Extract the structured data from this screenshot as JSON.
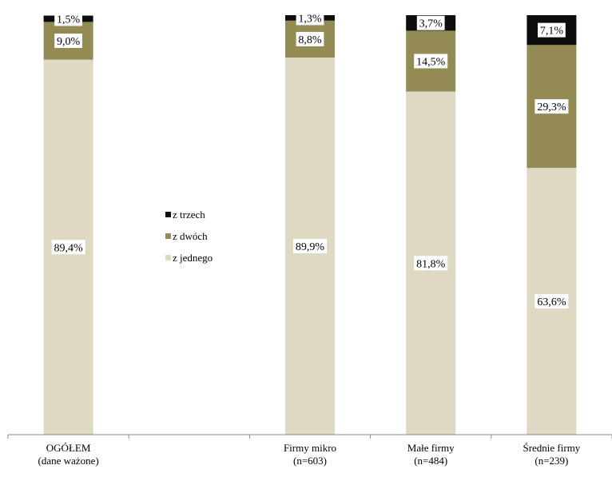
{
  "chart_data": {
    "type": "bar",
    "stacked": true,
    "categories": [
      [
        "OGÓŁEM",
        "(dane ważone)"
      ],
      [
        "",
        ""
      ],
      [
        "Firmy mikro",
        "(n=603)"
      ],
      [
        "Małe firmy",
        "(n=484)"
      ],
      [
        "Średnie firmy",
        "(n=239)"
      ]
    ],
    "series": [
      {
        "name": "z jednego",
        "color": "#ddd9c3",
        "values": [
          89.4,
          null,
          89.9,
          81.8,
          63.6
        ],
        "labels": [
          "89,4%",
          "",
          "89,9%",
          "81,8%",
          "63,6%"
        ]
      },
      {
        "name": "z dwóch",
        "color": "#948a54",
        "values": [
          9.0,
          null,
          8.8,
          14.5,
          29.3
        ],
        "labels": [
          "9,0%",
          "",
          "8,8%",
          "14,5%",
          "29,3%"
        ]
      },
      {
        "name": "z trzech",
        "color": "#0d0d0d",
        "values": [
          1.5,
          null,
          1.3,
          3.7,
          7.1
        ],
        "labels": [
          "1,5%",
          "",
          "1,3%",
          "3,7%",
          "7,1%"
        ]
      }
    ],
    "ylim": [
      0,
      100
    ],
    "legend_position": "inside, second column",
    "grid": false
  }
}
